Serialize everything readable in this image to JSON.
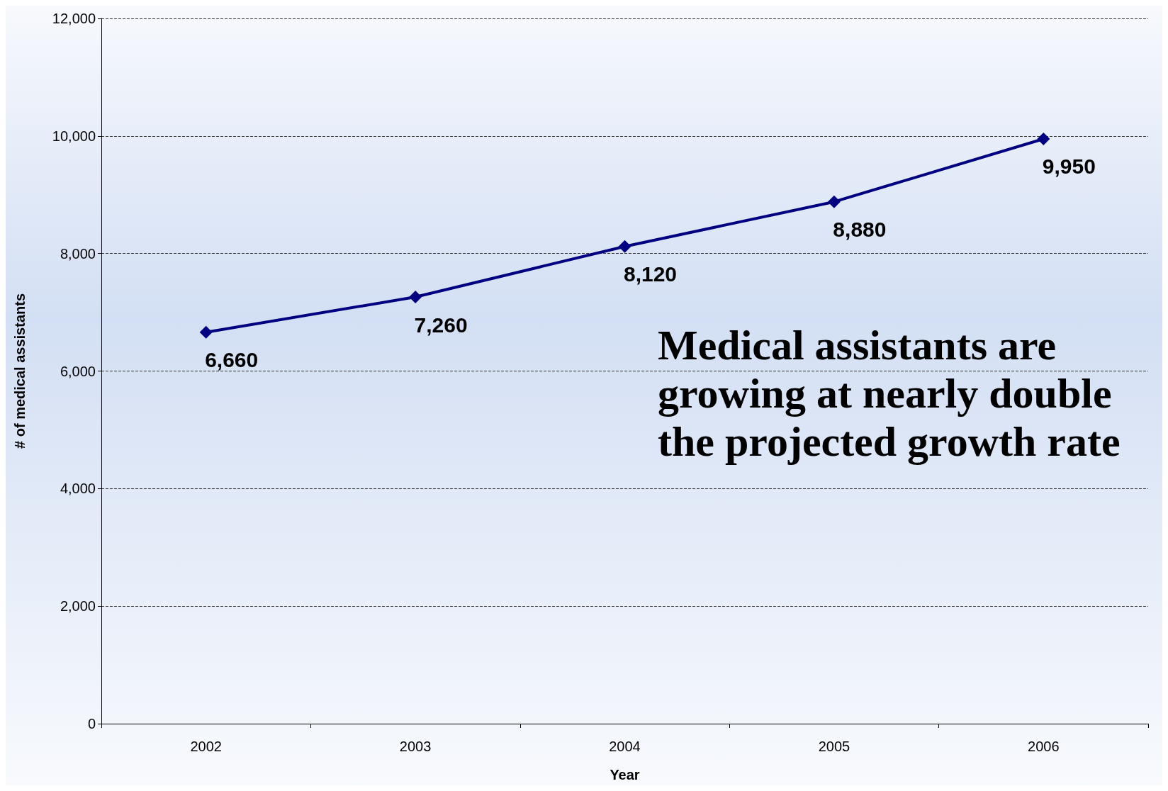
{
  "chart_data": {
    "type": "line",
    "xlabel": "Year",
    "ylabel": "# of medical assistants",
    "categories": [
      "2002",
      "2003",
      "2004",
      "2005",
      "2006"
    ],
    "series": [
      {
        "color": "#000080",
        "values": [
          6660,
          7260,
          8120,
          8880,
          9950
        ],
        "value_labels": [
          "6,660",
          "7,260",
          "8,120",
          "8,880",
          "9,950"
        ]
      }
    ],
    "ylim": [
      0,
      12000
    ],
    "yticks": [
      0,
      {
        "value": 2000,
        "label": "2,000"
      },
      {
        "value": 4000,
        "label": "4,000"
      },
      {
        "value": 6000,
        "label": "6,000"
      },
      {
        "value": 8000,
        "label": "8,000"
      },
      {
        "value": 10000,
        "label": "10,000"
      },
      {
        "value": 12000,
        "label": "12,000"
      }
    ],
    "grid": "y",
    "marker": "diamond",
    "line_style": "solid",
    "annotations": [
      "Medical assistants are growing at nearly double the projected growth rate"
    ]
  }
}
